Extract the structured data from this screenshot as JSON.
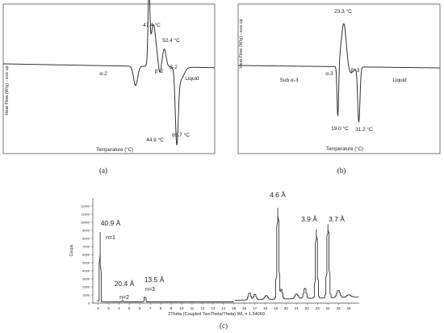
{
  "panel_labels": [
    "(a)",
    "(b)",
    "(c)"
  ],
  "chart_data": [
    {
      "id": "a",
      "type": "line",
      "xlabel": "Temperature (°C)",
      "ylabel": "Heat Flow (W/g) - exo up",
      "annotations": [
        {
          "text": "α-2"
        },
        {
          "text": "47.4 °C"
        },
        {
          "text": "52.4 °C"
        },
        {
          "text": "β'-2"
        },
        {
          "text": "β-2"
        },
        {
          "text": "Liquid"
        },
        {
          "text": "44.9 °C"
        },
        {
          "text": "65.7 °C"
        }
      ]
    },
    {
      "id": "b",
      "type": "line",
      "xlabel": "Temperature (°C)",
      "ylabel": "Heat Flow (W/g) - exo up",
      "annotations": [
        {
          "text": "23.3 °C"
        },
        {
          "text": "Sub α-3"
        },
        {
          "text": "α-3"
        },
        {
          "text": "β'-3"
        },
        {
          "text": "Liquid"
        },
        {
          "text": "19.0 °C"
        },
        {
          "text": "31.2 °C"
        }
      ]
    },
    {
      "id": "c",
      "type": "line",
      "xlabel": "2Théta (Coupled TwoTheta/Theta) WL = 1.54060",
      "ylabel": "Coups",
      "xlim": [
        1.5,
        27
      ],
      "ylim": [
        0,
        13000
      ],
      "x_ticks": [
        2,
        3,
        4,
        5,
        6,
        7,
        8,
        9,
        10,
        11,
        12,
        13,
        14,
        15,
        16,
        17,
        18,
        19,
        20,
        21,
        22,
        23,
        24,
        25,
        26
      ],
      "y_ticks": [
        0,
        1000,
        2000,
        3000,
        4000,
        5000,
        6000,
        7000,
        8000,
        9000,
        10000,
        11000,
        12000
      ],
      "peaks": [
        {
          "x": 2.2,
          "y": 8600
        },
        {
          "x": 4.35,
          "y": 150
        },
        {
          "x": 6.5,
          "y": 700
        },
        {
          "x": 19.2,
          "y": 11700
        },
        {
          "x": 22.9,
          "y": 9000
        },
        {
          "x": 24.0,
          "y": 9600
        }
      ],
      "annotations": [
        {
          "text": "40.9 Å"
        },
        {
          "text": "n=1"
        },
        {
          "text": "20.4 Å"
        },
        {
          "text": "n=2"
        },
        {
          "text": "13.5 Å"
        },
        {
          "text": "n=3"
        },
        {
          "text": "4.6 Å"
        },
        {
          "text": "3.9 Å"
        },
        {
          "text": "3.7 Å"
        }
      ]
    }
  ]
}
